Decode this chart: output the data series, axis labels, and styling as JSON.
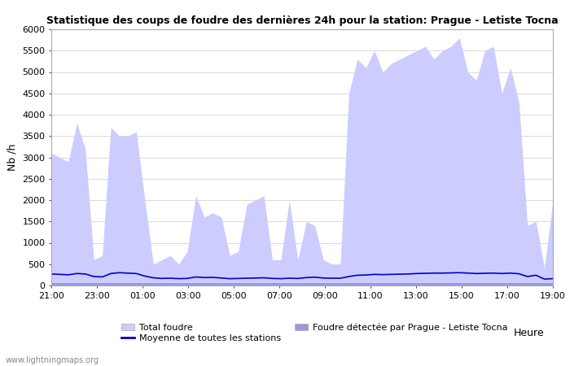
{
  "title": "Statistique des coups de foudre des dernières 24h pour la station: Prague - Letiste Tocna",
  "ylabel": "Nb /h",
  "xlabel_right": "Heure",
  "watermark": "www.lightningmaps.org",
  "ylim": [
    0,
    6000
  ],
  "yticks": [
    0,
    500,
    1000,
    1500,
    2000,
    2500,
    3000,
    3500,
    4000,
    4500,
    5000,
    5500,
    6000
  ],
  "xtick_labels": [
    "21:00",
    "23:00",
    "01:00",
    "03:00",
    "05:00",
    "07:00",
    "09:00",
    "11:00",
    "13:00",
    "15:00",
    "17:00",
    "19:00"
  ],
  "legend_total": "Total foudre",
  "legend_moyenne": "Moyenne de toutes les stations",
  "legend_detected": "Foudre détectée par Prague - Letiste Tocna",
  "color_total": "#ccccff",
  "color_detected": "#9999dd",
  "color_moyenne": "#0000cc",
  "total_foudre": [
    3100,
    3000,
    2900,
    3800,
    3200,
    600,
    700,
    3700,
    3500,
    3500,
    3600,
    2000,
    500,
    600,
    700,
    500,
    800,
    2100,
    1600,
    1700,
    1600,
    700,
    800,
    1900,
    2000,
    2100,
    600,
    600,
    2000,
    600,
    1500,
    1400,
    600,
    500,
    500,
    4500,
    5300,
    5100,
    5500,
    5000,
    5200,
    5300,
    5400,
    5500,
    5600,
    5300,
    5500,
    5600,
    5800,
    5000,
    4800,
    5500,
    5600,
    4500,
    5100,
    4300,
    1400,
    1500,
    400,
    2000
  ],
  "detected_foudre": [
    50,
    50,
    50,
    50,
    50,
    50,
    50,
    50,
    50,
    50,
    50,
    50,
    50,
    50,
    50,
    50,
    50,
    50,
    50,
    50,
    50,
    50,
    50,
    50,
    50,
    50,
    50,
    50,
    50,
    50,
    50,
    50,
    50,
    50,
    50,
    50,
    50,
    50,
    50,
    50,
    50,
    50,
    50,
    50,
    50,
    50,
    50,
    50,
    50,
    50,
    50,
    50,
    50,
    50,
    50,
    50,
    50,
    50,
    50,
    50
  ],
  "moyenne": [
    270,
    260,
    250,
    280,
    270,
    210,
    200,
    280,
    300,
    290,
    280,
    220,
    180,
    165,
    170,
    160,
    165,
    200,
    185,
    190,
    175,
    160,
    165,
    170,
    175,
    180,
    165,
    160,
    170,
    165,
    185,
    195,
    175,
    170,
    170,
    210,
    240,
    245,
    260,
    255,
    260,
    265,
    270,
    280,
    285,
    290,
    290,
    295,
    300,
    290,
    280,
    285,
    290,
    280,
    290,
    275,
    210,
    240,
    150,
    160
  ]
}
